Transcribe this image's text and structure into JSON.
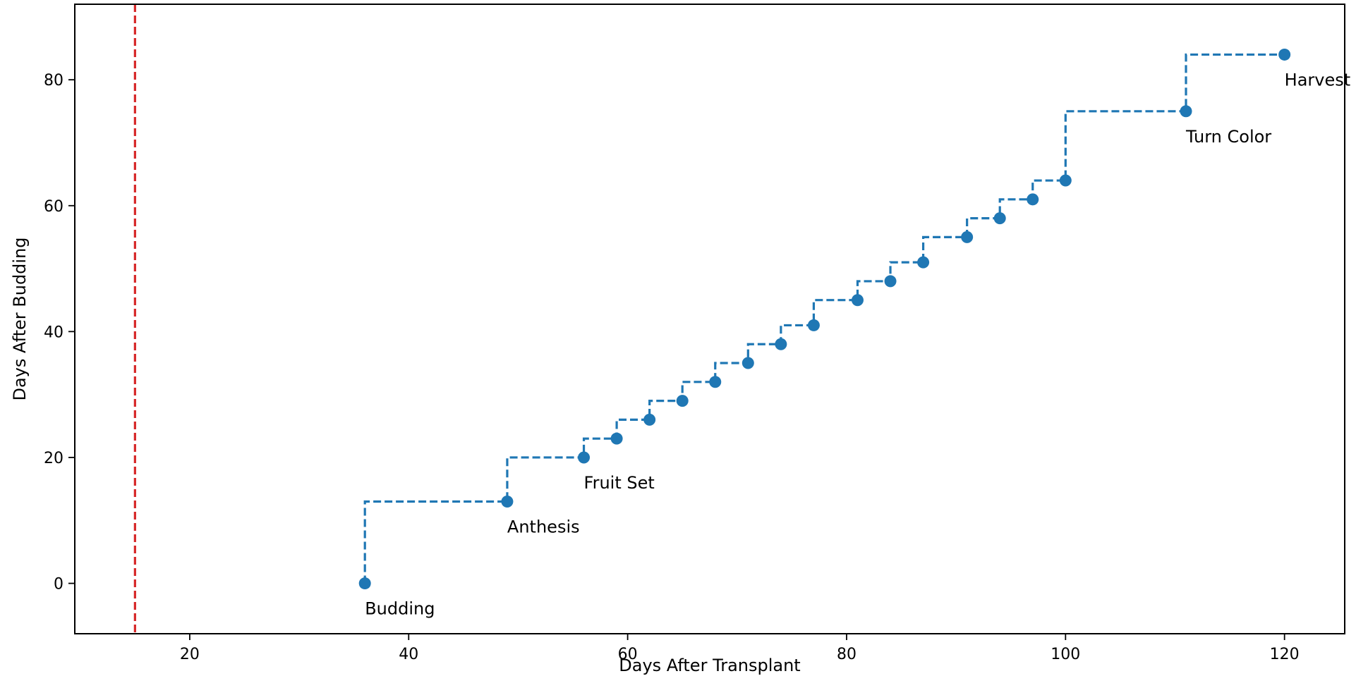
{
  "chart_data": {
    "type": "line",
    "title": "",
    "xlabel": "Days After Transplant",
    "ylabel": "Days After Budding",
    "xlim": [
      9.5,
      125.5
    ],
    "ylim": [
      -8,
      92
    ],
    "xticks": [
      20,
      40,
      60,
      80,
      100,
      120
    ],
    "yticks": [
      0,
      20,
      40,
      60,
      80
    ],
    "grid": false,
    "legend": "none",
    "colors": {
      "series": "#1f77b4",
      "reference_line": "#d62728"
    },
    "reference_line": {
      "axis": "x",
      "value": 15,
      "style": "dashed"
    },
    "series": [
      {
        "step": "post",
        "line_style": "dashed",
        "marker": "circle",
        "x": [
          36,
          49,
          56,
          59,
          62,
          65,
          68,
          71,
          74,
          77,
          81,
          84,
          87,
          91,
          94,
          97,
          100,
          111,
          120
        ],
        "y": [
          0,
          13,
          20,
          23,
          26,
          29,
          32,
          35,
          38,
          41,
          45,
          48,
          51,
          55,
          58,
          61,
          64,
          75,
          84
        ]
      }
    ],
    "annotations": [
      {
        "text": "Budding",
        "x": 36,
        "y": 0
      },
      {
        "text": "Anthesis",
        "x": 49,
        "y": 13
      },
      {
        "text": "Fruit Set",
        "x": 56,
        "y": 20
      },
      {
        "text": "Turn Color",
        "x": 111,
        "y": 75
      },
      {
        "text": "Harvest",
        "x": 120,
        "y": 84
      }
    ]
  }
}
